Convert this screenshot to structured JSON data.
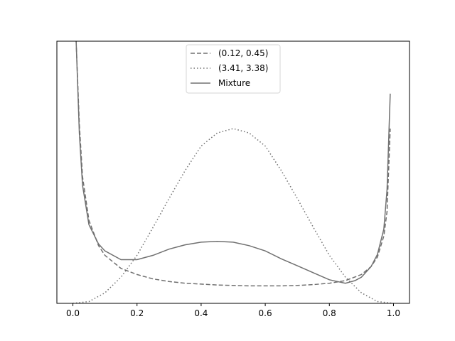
{
  "chart_data": {
    "type": "line",
    "title": "",
    "xlabel": "",
    "ylabel": "",
    "xlim": [
      -0.05,
      1.05
    ],
    "ylim": [
      0,
      3
    ],
    "y_ticks_visible": false,
    "x_ticks": [
      "0.0",
      "0.2",
      "0.4",
      "0.6",
      "0.8",
      "1.0"
    ],
    "grid": false,
    "legend_position": "top-center",
    "line_color": "#707070",
    "series": [
      {
        "name": "(0.12, 0.45)",
        "style": "dashed",
        "x": [
          0.01,
          0.02,
          0.03,
          0.05,
          0.08,
          0.1,
          0.15,
          0.2,
          0.25,
          0.3,
          0.35,
          0.4,
          0.45,
          0.5,
          0.55,
          0.6,
          0.65,
          0.7,
          0.75,
          0.8,
          0.85,
          0.9,
          0.93,
          0.95,
          0.97,
          0.98,
          0.99
        ],
        "values": [
          3.0,
          2.05,
          1.45,
          0.95,
          0.66,
          0.55,
          0.4,
          0.33,
          0.28,
          0.25,
          0.23,
          0.22,
          0.21,
          0.205,
          0.2,
          0.2,
          0.2,
          0.205,
          0.215,
          0.23,
          0.26,
          0.33,
          0.42,
          0.53,
          0.77,
          1.05,
          2.0
        ]
      },
      {
        "name": "(3.41, 3.38)",
        "style": "dotted",
        "x": [
          0.0,
          0.05,
          0.1,
          0.15,
          0.2,
          0.25,
          0.3,
          0.35,
          0.4,
          0.45,
          0.5,
          0.55,
          0.6,
          0.65,
          0.7,
          0.75,
          0.8,
          0.85,
          0.9,
          0.95,
          1.0
        ],
        "values": [
          0.0,
          0.02,
          0.12,
          0.3,
          0.55,
          0.87,
          1.2,
          1.52,
          1.8,
          1.95,
          2.0,
          1.95,
          1.8,
          1.52,
          1.2,
          0.87,
          0.55,
          0.3,
          0.12,
          0.02,
          0.0
        ]
      },
      {
        "name": "Mixture",
        "style": "solid",
        "x": [
          0.01,
          0.02,
          0.03,
          0.05,
          0.08,
          0.1,
          0.15,
          0.2,
          0.25,
          0.3,
          0.35,
          0.4,
          0.45,
          0.5,
          0.55,
          0.6,
          0.65,
          0.7,
          0.75,
          0.8,
          0.85,
          0.88,
          0.9,
          0.93,
          0.95,
          0.97,
          0.98,
          0.99
        ],
        "values": [
          3.0,
          1.95,
          1.35,
          0.9,
          0.68,
          0.6,
          0.5,
          0.5,
          0.55,
          0.62,
          0.67,
          0.7,
          0.71,
          0.7,
          0.66,
          0.6,
          0.51,
          0.43,
          0.35,
          0.27,
          0.23,
          0.26,
          0.3,
          0.42,
          0.56,
          0.85,
          1.3,
          2.4
        ]
      }
    ]
  }
}
